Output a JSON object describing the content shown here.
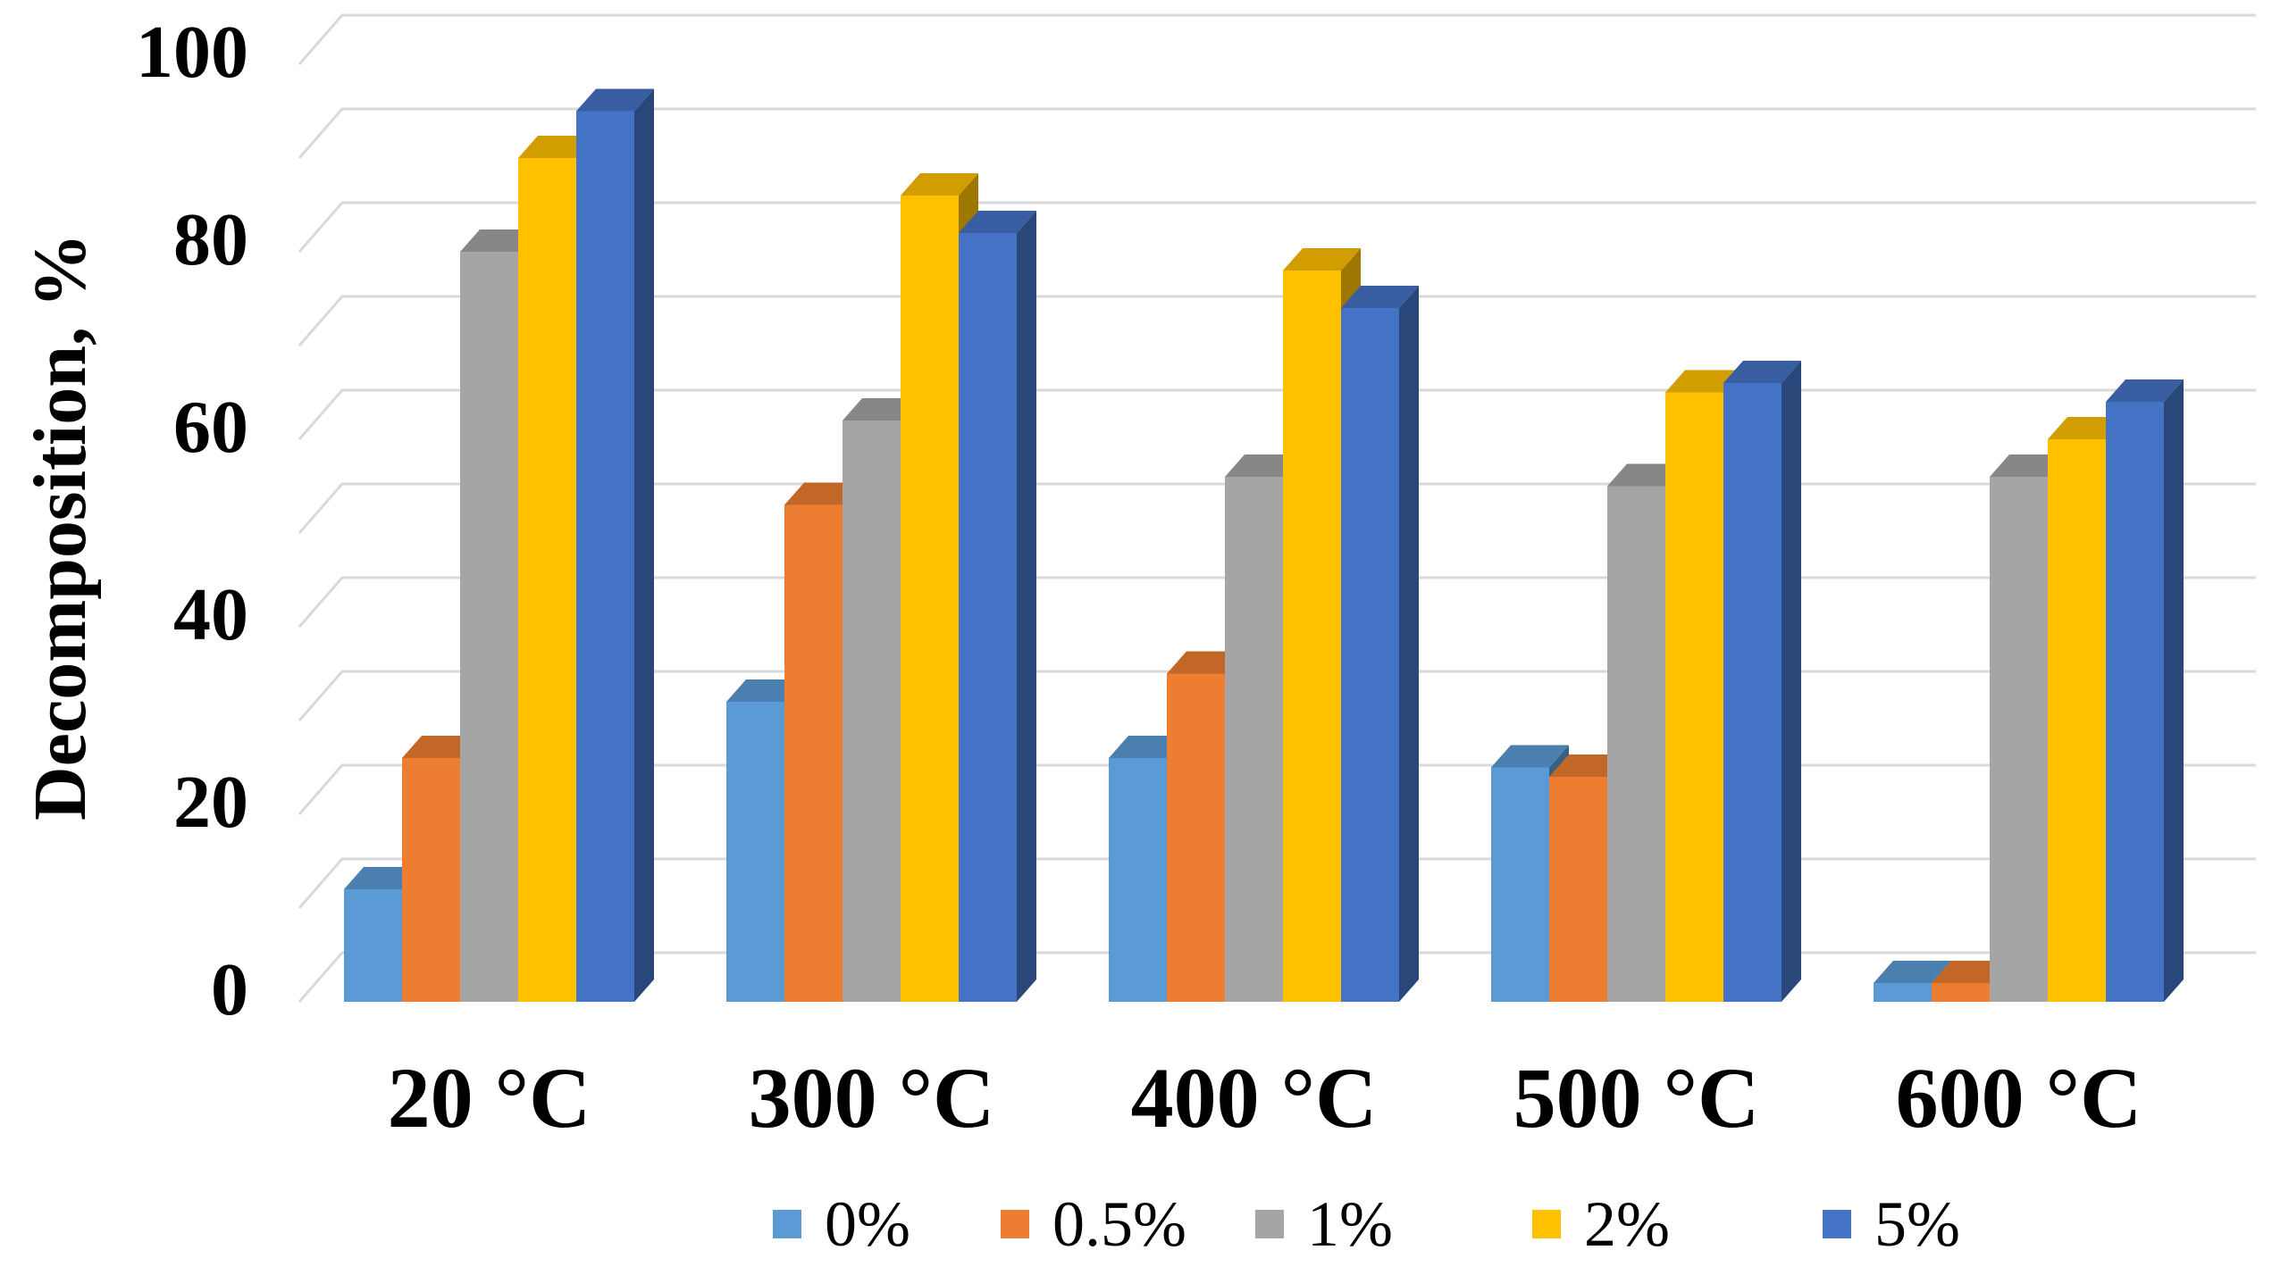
{
  "chart_data": {
    "type": "bar",
    "style": "3d-clustered-column",
    "title": "",
    "xlabel": "",
    "ylabel": "Decomposition, %",
    "ylim": [
      0,
      100
    ],
    "yticks": [
      0,
      20,
      40,
      60,
      80,
      100
    ],
    "grid": true,
    "legend_position": "bottom",
    "categories": [
      "20 °C",
      "300 °C",
      "400 °C",
      "500 °C",
      "600 °C"
    ],
    "series": [
      {
        "name": "0%",
        "color": "#5b9bd5",
        "values": [
          12,
          32,
          26,
          25,
          2
        ]
      },
      {
        "name": "0.5%",
        "color": "#ed7d31",
        "values": [
          26,
          53,
          35,
          24,
          2
        ]
      },
      {
        "name": "1%",
        "color": "#a5a5a5",
        "values": [
          80,
          62,
          56,
          55,
          56
        ]
      },
      {
        "name": "2%",
        "color": "#ffc000",
        "values": [
          90,
          86,
          78,
          65,
          60
        ]
      },
      {
        "name": "5%",
        "color": "#4472c4",
        "values": [
          95,
          82,
          74,
          66,
          64
        ]
      }
    ]
  }
}
